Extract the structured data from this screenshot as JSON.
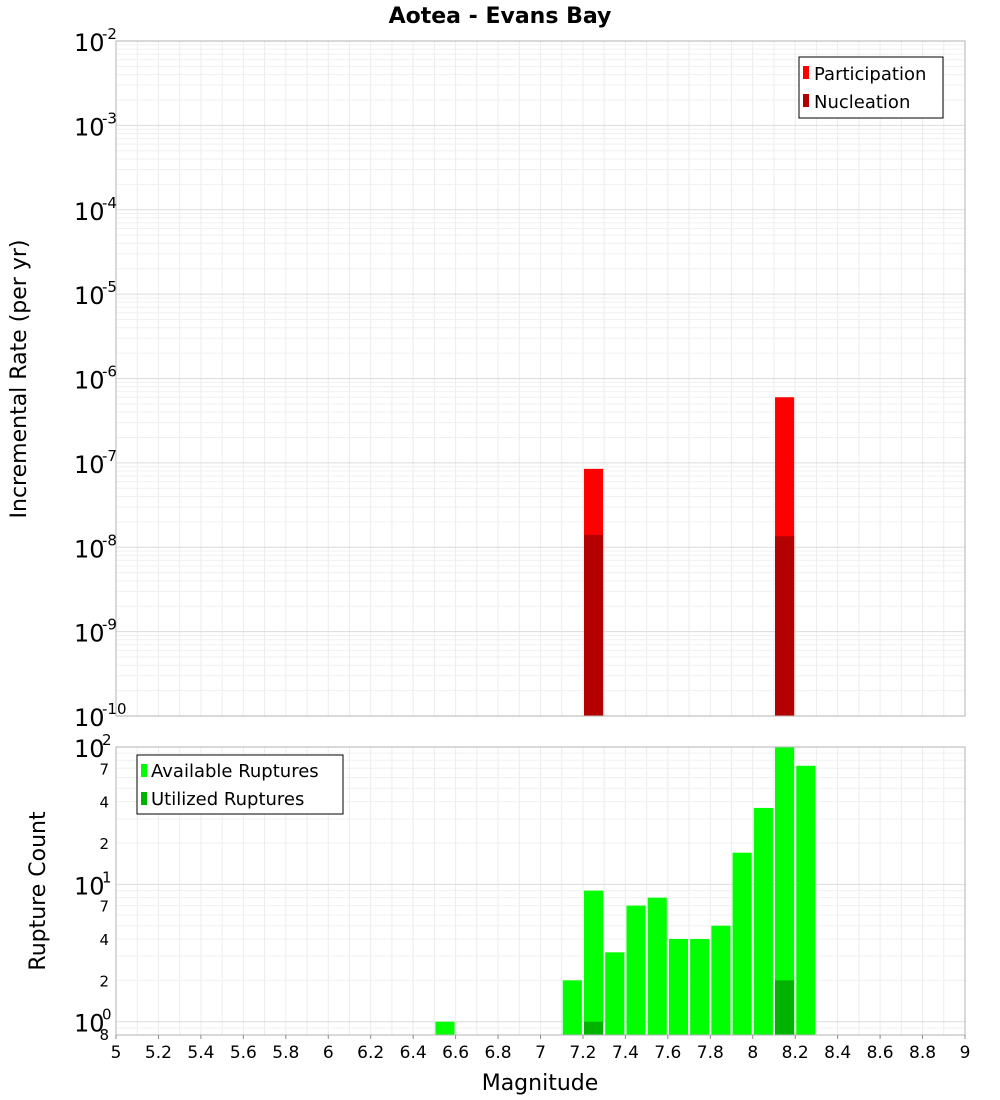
{
  "chart_data": [
    {
      "type": "bar",
      "title": "Aotea - Evans Bay",
      "ylabel": "Incremental Rate (per yr)",
      "xlabel": "",
      "yscale": "log",
      "xlim": [
        5,
        9
      ],
      "ylim": [
        1e-10,
        0.01
      ],
      "ytick_base": "10",
      "ytick_exponents": [
        "-2",
        "-3",
        "-4",
        "-5",
        "-6",
        "-7",
        "-8",
        "-9",
        "-10"
      ],
      "grid": true,
      "legend_position": "top-right",
      "bar_width": 0.09,
      "series": [
        {
          "name": "Participation",
          "color": "#ff0000",
          "points": [
            {
              "x": 7.25,
              "y": 8.5e-08
            },
            {
              "x": 8.15,
              "y": 6e-07
            }
          ]
        },
        {
          "name": "Nucleation",
          "color": "#b30000",
          "points": [
            {
              "x": 7.25,
              "y": 1.4e-08
            },
            {
              "x": 8.15,
              "y": 1.35e-08
            }
          ]
        }
      ]
    },
    {
      "type": "bar",
      "title": "",
      "ylabel": "Rupture Count",
      "xlabel": "Magnitude",
      "yscale": "log",
      "xlim": [
        5,
        9
      ],
      "ylim": [
        0.8,
        100
      ],
      "ytick_base": "10",
      "ytick_exponents": [
        "2",
        "1",
        "0"
      ],
      "minor_ticks": [
        "7",
        "4",
        "2",
        "7",
        "4",
        "2",
        "8"
      ],
      "x_tick_labels": [
        "5",
        "5.2",
        "5.4",
        "5.6",
        "5.8",
        "6",
        "6.2",
        "6.4",
        "6.6",
        "6.8",
        "7",
        "7.2",
        "7.4",
        "7.6",
        "7.8",
        "8",
        "8.2",
        "8.4",
        "8.6",
        "8.8",
        "9"
      ],
      "grid": true,
      "legend_position": "top-left",
      "bar_width": 0.09,
      "series": [
        {
          "name": "Available Ruptures",
          "color": "#00ff00",
          "points": [
            {
              "x": 6.55,
              "y": 1
            },
            {
              "x": 7.15,
              "y": 2
            },
            {
              "x": 7.25,
              "y": 9
            },
            {
              "x": 7.35,
              "y": 3.2
            },
            {
              "x": 7.45,
              "y": 7
            },
            {
              "x": 7.55,
              "y": 8
            },
            {
              "x": 7.65,
              "y": 4
            },
            {
              "x": 7.75,
              "y": 4
            },
            {
              "x": 7.85,
              "y": 5
            },
            {
              "x": 7.95,
              "y": 17
            },
            {
              "x": 8.05,
              "y": 36
            },
            {
              "x": 8.15,
              "y": 100
            },
            {
              "x": 8.25,
              "y": 73
            }
          ]
        },
        {
          "name": "Utilized Ruptures",
          "color": "#00b300",
          "points": [
            {
              "x": 7.25,
              "y": 1
            },
            {
              "x": 8.15,
              "y": 2
            }
          ]
        }
      ]
    }
  ]
}
